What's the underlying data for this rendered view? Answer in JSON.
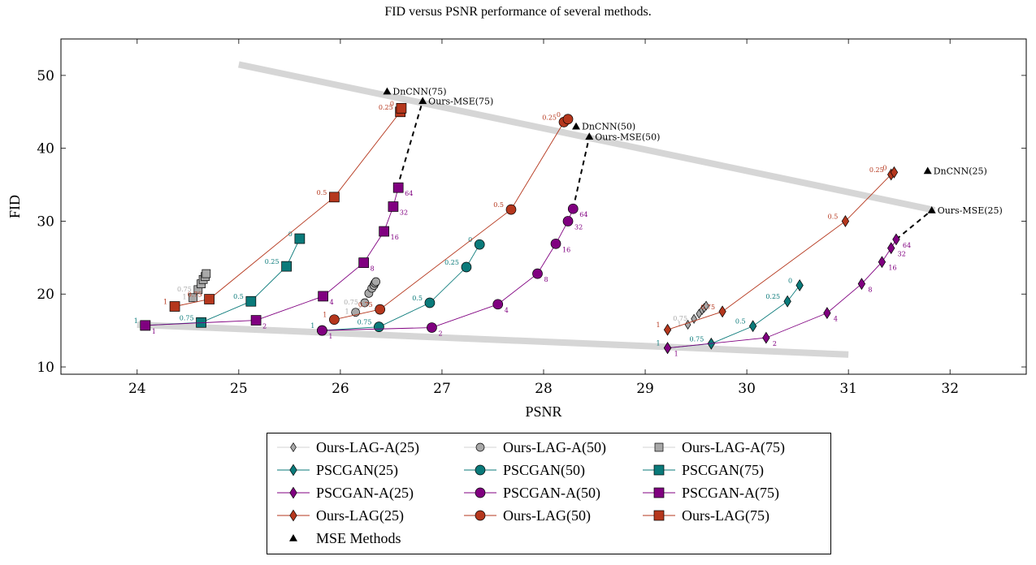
{
  "title": "FID versus PSNR performance of several methods.",
  "chart_data": {
    "type": "scatter",
    "title": "FID versus PSNR performance of several methods.",
    "xlabel": "PSNR",
    "ylabel": "FID",
    "xlim": [
      23.25,
      32.75
    ],
    "ylim": [
      9.0,
      55.0
    ],
    "xticks": [
      24,
      25,
      26,
      27,
      28,
      29,
      30,
      31,
      32
    ],
    "yticks": [
      10,
      20,
      30,
      40,
      50
    ],
    "grid": false,
    "legend_position": "bottom",
    "bands": [
      {
        "x": [
          25.0,
          31.85
        ],
        "y": [
          51.5,
          31.5
        ]
      },
      {
        "x": [
          24.0,
          31.0
        ],
        "y": [
          15.8,
          11.7
        ]
      }
    ],
    "series": [
      {
        "name": "Ours-LAG-A(25)",
        "color": "#a8a8a8",
        "marker": "diamond",
        "markersize": 4,
        "linewidth": 0.6,
        "x": [
          29.42,
          29.48,
          29.53,
          29.56,
          29.58,
          29.6
        ],
        "y": [
          15.8,
          16.6,
          17.3,
          17.8,
          18.1,
          18.4
        ],
        "labels": [
          "1",
          "0.75",
          "",
          "",
          "",
          ""
        ]
      },
      {
        "name": "Ours-LAG-A(50)",
        "color": "#a8a8a8",
        "marker": "circle",
        "markersize": 5,
        "linewidth": 0.6,
        "x": [
          26.15,
          26.24,
          26.28,
          26.31,
          26.33,
          26.34,
          26.35
        ],
        "y": [
          17.5,
          18.8,
          20.1,
          20.8,
          21.2,
          21.5,
          21.7
        ],
        "labels": [
          "1",
          "0.75",
          "",
          "",
          "",
          "",
          ""
        ]
      },
      {
        "name": "Ours-LAG-A(75)",
        "color": "#a8a8a8",
        "marker": "square",
        "markersize": 5,
        "linewidth": 0.6,
        "x": [
          24.55,
          24.6,
          24.63,
          24.65,
          24.67,
          24.68
        ],
        "y": [
          19.5,
          20.6,
          21.4,
          22.0,
          22.4,
          22.8
        ],
        "labels": [
          "1",
          "0.75",
          "",
          "",
          "",
          ""
        ]
      },
      {
        "name": "PSCGAN(25)",
        "color": "#0a7a7a",
        "marker": "diamond",
        "markersize": 5,
        "linewidth": 0.9,
        "x": [
          29.22,
          29.65,
          30.06,
          30.4,
          30.52
        ],
        "y": [
          12.6,
          13.2,
          15.6,
          19.0,
          21.2
        ],
        "labels": [
          "1",
          "0.75",
          "0.5",
          "0.25",
          "0"
        ]
      },
      {
        "name": "PSCGAN(50)",
        "color": "#0a7a7a",
        "marker": "circle",
        "markersize": 6,
        "linewidth": 0.9,
        "x": [
          25.82,
          26.38,
          26.88,
          27.24,
          27.37
        ],
        "y": [
          15.0,
          15.5,
          18.8,
          23.7,
          26.8
        ],
        "labels": [
          "1",
          "0.75",
          "0.5",
          "0.25",
          "0"
        ]
      },
      {
        "name": "PSCGAN(75)",
        "color": "#0a7a7a",
        "marker": "square",
        "markersize": 6,
        "linewidth": 0.9,
        "x": [
          24.08,
          24.63,
          25.12,
          25.47,
          25.6
        ],
        "y": [
          15.7,
          16.1,
          19.0,
          23.8,
          27.6
        ],
        "labels": [
          "1",
          "0.75",
          "0.5",
          "0.25",
          "0"
        ]
      },
      {
        "name": "PSCGAN-A(25)",
        "color": "#800080",
        "marker": "diamond",
        "markersize": 5,
        "linewidth": 0.9,
        "x": [
          29.22,
          30.19,
          30.79,
          31.13,
          31.33,
          31.42,
          31.47
        ],
        "y": [
          12.6,
          14.0,
          17.4,
          21.4,
          24.4,
          26.3,
          27.5
        ],
        "labels": [
          "1",
          "2",
          "4",
          "8",
          "16",
          "32",
          "64"
        ]
      },
      {
        "name": "PSCGAN-A(50)",
        "color": "#800080",
        "marker": "circle",
        "markersize": 6,
        "linewidth": 0.9,
        "x": [
          25.82,
          26.9,
          27.55,
          27.94,
          28.12,
          28.24,
          28.29
        ],
        "y": [
          15.0,
          15.4,
          18.6,
          22.8,
          26.9,
          30.0,
          31.7
        ],
        "labels": [
          "1",
          "2",
          "4",
          "8",
          "16",
          "32",
          "64"
        ]
      },
      {
        "name": "PSCGAN-A(75)",
        "color": "#800080",
        "marker": "square",
        "markersize": 6,
        "linewidth": 0.9,
        "x": [
          24.08,
          25.17,
          25.83,
          26.23,
          26.43,
          26.52,
          26.57
        ],
        "y": [
          15.7,
          16.4,
          19.7,
          24.3,
          28.6,
          32.0,
          34.6
        ],
        "labels": [
          "1",
          "2",
          "4",
          "8",
          "16",
          "32",
          "64"
        ]
      },
      {
        "name": "Ours-LAG(25)",
        "color": "#b5371d",
        "marker": "diamond",
        "markersize": 5,
        "linewidth": 0.9,
        "x": [
          29.22,
          29.76,
          30.97,
          31.42,
          31.45
        ],
        "y": [
          15.1,
          17.6,
          30.0,
          36.4,
          36.7
        ],
        "labels": [
          "1",
          "0.75",
          "0.5",
          "0.25",
          "0"
        ]
      },
      {
        "name": "Ours-LAG(50)",
        "color": "#b5371d",
        "marker": "circle",
        "markersize": 6,
        "linewidth": 0.9,
        "x": [
          25.94,
          26.39,
          27.68,
          28.2,
          28.24
        ],
        "y": [
          16.5,
          17.9,
          31.6,
          43.6,
          44.0
        ],
        "labels": [
          "1",
          "0.75",
          "0.5",
          "0.25",
          "0"
        ]
      },
      {
        "name": "Ours-LAG(75)",
        "color": "#b5371d",
        "marker": "square",
        "markersize": 6,
        "linewidth": 0.9,
        "x": [
          24.37,
          24.71,
          25.94,
          26.59,
          26.6
        ],
        "y": [
          18.3,
          19.3,
          33.3,
          45.0,
          45.5
        ],
        "labels": [
          "1",
          "0.75",
          "0.5",
          "0.25",
          "0"
        ]
      },
      {
        "name": "MSE Methods",
        "color": "#000000",
        "marker": "triangle",
        "markersize": 5,
        "linewidth": 0,
        "x": [
          26.46,
          26.81,
          28.32,
          28.45,
          31.78,
          31.82
        ],
        "y": [
          47.8,
          46.5,
          43.0,
          41.6,
          36.9,
          31.5
        ],
        "labels": [
          "DnCNN(75)",
          "Ours-MSE(75)",
          "DnCNN(50)",
          "Ours-MSE(50)",
          "DnCNN(25)",
          "Ours-MSE(25)"
        ]
      }
    ],
    "dashed_links": [
      {
        "x": [
          26.56,
          26.81
        ],
        "y": [
          34.6,
          46.5
        ]
      },
      {
        "x": [
          28.29,
          28.45
        ],
        "y": [
          31.7,
          41.6
        ]
      },
      {
        "x": [
          31.47,
          31.82
        ],
        "y": [
          27.5,
          31.5
        ]
      }
    ]
  },
  "legend": {
    "items": [
      {
        "label": "Ours-LAG-A(25)",
        "series": 0
      },
      {
        "label": "Ours-LAG-A(50)",
        "series": 1
      },
      {
        "label": "Ours-LAG-A(75)",
        "series": 2
      },
      {
        "label": "PSCGAN(25)",
        "series": 3
      },
      {
        "label": "PSCGAN(50)",
        "series": 4
      },
      {
        "label": "PSCGAN(75)",
        "series": 5
      },
      {
        "label": "PSCGAN-A(25)",
        "series": 6
      },
      {
        "label": "PSCGAN-A(50)",
        "series": 7
      },
      {
        "label": "PSCGAN-A(75)",
        "series": 8
      },
      {
        "label": "Ours-LAG(25)",
        "series": 9
      },
      {
        "label": "Ours-LAG(50)",
        "series": 10
      },
      {
        "label": "Ours-LAG(75)",
        "series": 11
      },
      {
        "label": "MSE Methods",
        "series": 12
      }
    ]
  }
}
